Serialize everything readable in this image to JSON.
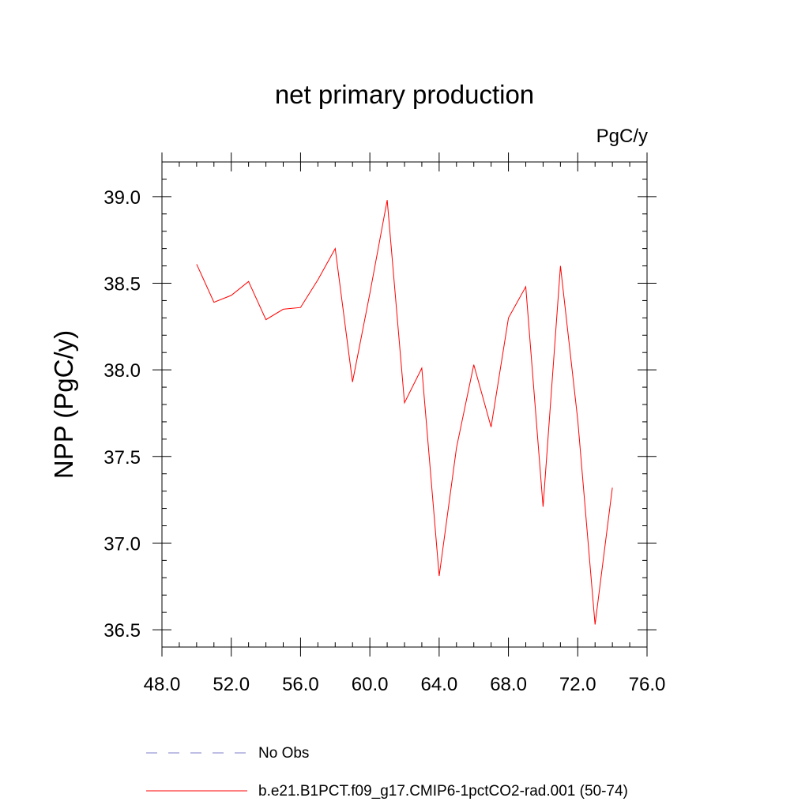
{
  "chart_data": {
    "type": "line",
    "title": "net primary production",
    "units_label": "PgC/y",
    "ylabel": "NPP  (PgC/y)",
    "xlabel": "",
    "xlim": [
      48.0,
      76.0
    ],
    "ylim": [
      36.4,
      39.2
    ],
    "x_ticks": [
      48.0,
      52.0,
      56.0,
      60.0,
      64.0,
      68.0,
      72.0,
      76.0
    ],
    "x_tick_labels": [
      "48.0",
      "52.0",
      "56.0",
      "60.0",
      "64.0",
      "68.0",
      "72.0",
      "76.0"
    ],
    "x_minor_step": 1,
    "y_ticks": [
      36.5,
      37.0,
      37.5,
      38.0,
      38.5,
      39.0
    ],
    "y_tick_labels": [
      "36.5",
      "37.0",
      "37.5",
      "38.0",
      "38.5",
      "39.0"
    ],
    "y_minor_step": 0.1,
    "grid": false,
    "legend_position": "bottom",
    "series": [
      {
        "name": "b.e21.B1PCT.f09_g17.CMIP6-1pctCO2-rad.001 (50-74)",
        "color": "#ff0000",
        "dash": "solid",
        "x": [
          50,
          51,
          52,
          53,
          54,
          55,
          56,
          57,
          58,
          59,
          60,
          61,
          62,
          63,
          64,
          65,
          66,
          67,
          68,
          69,
          70,
          71,
          72,
          73,
          74
        ],
        "y": [
          38.61,
          38.39,
          38.43,
          38.51,
          38.29,
          38.35,
          38.36,
          38.52,
          38.7,
          37.93,
          38.44,
          38.98,
          37.81,
          38.01,
          36.81,
          37.55,
          38.03,
          37.67,
          38.3,
          38.48,
          37.21,
          38.6,
          37.71,
          36.53,
          37.32
        ]
      }
    ],
    "legend": [
      {
        "label": "No Obs",
        "color": "#7f7fcc",
        "dash": "dashed"
      },
      {
        "label": "b.e21.B1PCT.f09_g17.CMIP6-1pctCO2-rad.001 (50-74)",
        "color": "#ff0000",
        "dash": "solid"
      }
    ]
  }
}
